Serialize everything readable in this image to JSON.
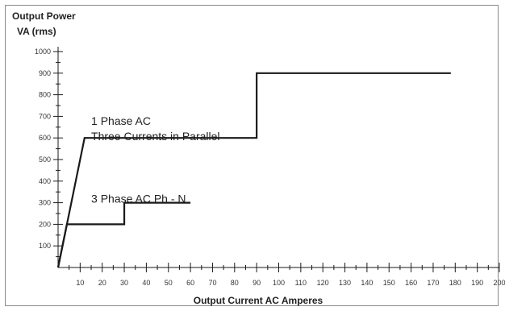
{
  "chart_data": {
    "type": "line",
    "title": "",
    "ylabel_line1": "Output Power",
    "ylabel_line2": "VA (rms)",
    "xlabel": "Output Current AC Amperes",
    "xlim": [
      0,
      200
    ],
    "ylim": [
      0,
      1000
    ],
    "grid": false,
    "x_ticks": [
      10,
      20,
      30,
      40,
      50,
      60,
      70,
      80,
      90,
      100,
      110,
      120,
      130,
      140,
      150,
      160,
      170,
      180,
      190,
      200
    ],
    "y_ticks": [
      100,
      200,
      300,
      400,
      500,
      600,
      700,
      800,
      900,
      1000
    ],
    "series": [
      {
        "x": [
          0,
          12,
          90,
          90,
          178
        ],
        "y": [
          0,
          600,
          600,
          900,
          900
        ]
      },
      {
        "x": [
          0,
          4,
          30,
          30,
          60
        ],
        "y": [
          0,
          200,
          200,
          300,
          300
        ]
      }
    ],
    "annotations": [
      {
        "text": "1 Phase AC",
        "x": 15,
        "y": 660
      },
      {
        "text": "Three Currents in Parallel",
        "x": 15,
        "y": 590
      },
      {
        "text": "3 Phase AC Ph - N",
        "x": 15,
        "y": 300
      }
    ],
    "line_color": "#1a1a1a"
  }
}
